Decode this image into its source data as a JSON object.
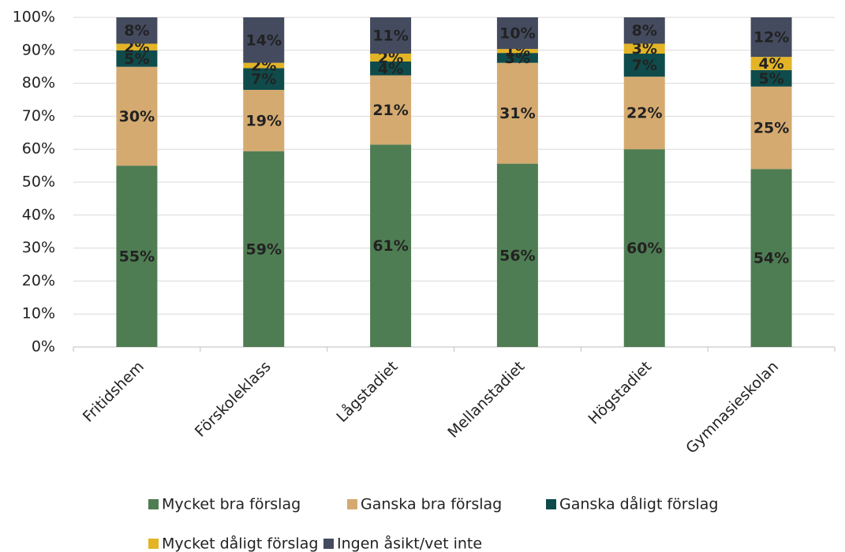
{
  "chart_data": {
    "type": "stacked_bar",
    "categories": [
      "Fritidshem",
      "Förskoleklass",
      "Lågstadiet",
      "Mellanstadiet",
      "Högstadiet",
      "Gymnasieskolan"
    ],
    "series": [
      {
        "name": "Mycket bra förslag",
        "color": "#4f7d53",
        "values": [
          55,
          59.4,
          61.4,
          55.6,
          60,
          54
        ],
        "value_labels": [
          "55%",
          "59%",
          "61%",
          "56%",
          "60%",
          "54%"
        ]
      },
      {
        "name": "Ganska bra förslag",
        "color": "#d5aa70",
        "values": [
          30,
          18.6,
          21,
          30.6,
          22,
          25
        ],
        "value_labels": [
          "30%",
          "19%",
          "21%",
          "31%",
          "22%",
          "25%"
        ]
      },
      {
        "name": "Ganska dåligt förslag",
        "color": "#0f4b4b",
        "values": [
          5,
          6.6,
          4.2,
          3,
          7,
          5
        ],
        "value_labels": [
          "5%",
          "7%",
          "4%",
          "3%",
          "7%",
          "5%"
        ]
      },
      {
        "name": "Mycket dåligt förslag",
        "color": "#e3b425",
        "values": [
          2,
          1.6,
          2.4,
          1.2,
          3,
          4
        ],
        "value_labels": [
          "2%",
          "2%",
          "2%",
          "1%",
          "3%",
          "4%"
        ]
      },
      {
        "name": "Ingen åsikt/vet inte",
        "color": "#444b5f",
        "values": [
          8,
          13.8,
          11,
          9.6,
          8,
          12
        ],
        "value_labels": [
          "8%",
          "14%",
          "11%",
          "10%",
          "8%",
          "12%"
        ]
      }
    ],
    "ylim": [
      0,
      100
    ],
    "yticks": [
      {
        "value": 0,
        "label": "0%"
      },
      {
        "value": 10,
        "label": "10%"
      },
      {
        "value": 20,
        "label": "20%"
      },
      {
        "value": 30,
        "label": "30%"
      },
      {
        "value": 40,
        "label": "40%"
      },
      {
        "value": 50,
        "label": "50%"
      },
      {
        "value": 60,
        "label": "60%"
      },
      {
        "value": 70,
        "label": "70%"
      },
      {
        "value": 80,
        "label": "80%"
      },
      {
        "value": 90,
        "label": "90%"
      },
      {
        "value": 100,
        "label": "100%"
      }
    ],
    "grid": true
  }
}
